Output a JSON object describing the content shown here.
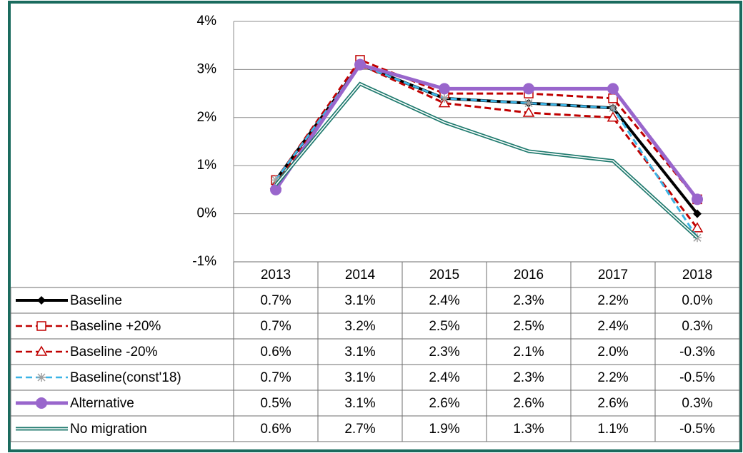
{
  "chart_data": {
    "type": "line",
    "categories": [
      "2013",
      "2014",
      "2015",
      "2016",
      "2017",
      "2018"
    ],
    "ylim": [
      -1,
      4
    ],
    "yticks": [
      {
        "value": -1,
        "label": "-1%"
      },
      {
        "value": 0,
        "label": "0%"
      },
      {
        "value": 1,
        "label": "1%"
      },
      {
        "value": 2,
        "label": "2%"
      },
      {
        "value": 3,
        "label": "3%"
      },
      {
        "value": 4,
        "label": "4%"
      }
    ],
    "grid": true,
    "series": [
      {
        "name": "Baseline",
        "color": "#000000",
        "marker": "diamond",
        "dash": "solid",
        "values": [
          0.7,
          3.1,
          2.4,
          2.3,
          2.2,
          0.0
        ],
        "value_labels": [
          "0.7%",
          "3.1%",
          "2.4%",
          "2.3%",
          "2.2%",
          "0.0%"
        ]
      },
      {
        "name": "Baseline +20%",
        "color": "#c00000",
        "marker": "square",
        "dash": "dashed",
        "values": [
          0.7,
          3.2,
          2.5,
          2.5,
          2.4,
          0.3
        ],
        "value_labels": [
          "0.7%",
          "3.2%",
          "2.5%",
          "2.5%",
          "2.4%",
          "0.3%"
        ]
      },
      {
        "name": "Baseline -20%",
        "color": "#c00000",
        "marker": "triangle",
        "dash": "dashed",
        "values": [
          0.6,
          3.1,
          2.3,
          2.1,
          2.0,
          -0.3
        ],
        "value_labels": [
          "0.6%",
          "3.1%",
          "2.3%",
          "2.1%",
          "2.0%",
          "-0.3%"
        ]
      },
      {
        "name": "Baseline(const'18)",
        "color": "#3cb4e6",
        "marker": "star",
        "dash": "dashed",
        "values": [
          0.7,
          3.1,
          2.4,
          2.3,
          2.2,
          -0.5
        ],
        "value_labels": [
          "0.7%",
          "3.1%",
          "2.4%",
          "2.3%",
          "2.2%",
          "-0.5%"
        ]
      },
      {
        "name": "Alternative",
        "color": "#9966cc",
        "marker": "circle",
        "dash": "solid",
        "values": [
          0.5,
          3.1,
          2.6,
          2.6,
          2.6,
          0.3
        ],
        "value_labels": [
          "0.5%",
          "3.1%",
          "2.6%",
          "2.6%",
          "2.6%",
          "0.3%"
        ]
      },
      {
        "name": "No migration",
        "color": "#1f7a6e",
        "marker": "none",
        "dash": "double",
        "values": [
          0.6,
          2.7,
          1.9,
          1.3,
          1.1,
          -0.5
        ],
        "value_labels": [
          "0.6%",
          "2.7%",
          "1.9%",
          "1.3%",
          "1.1%",
          "-0.5%"
        ]
      }
    ]
  }
}
